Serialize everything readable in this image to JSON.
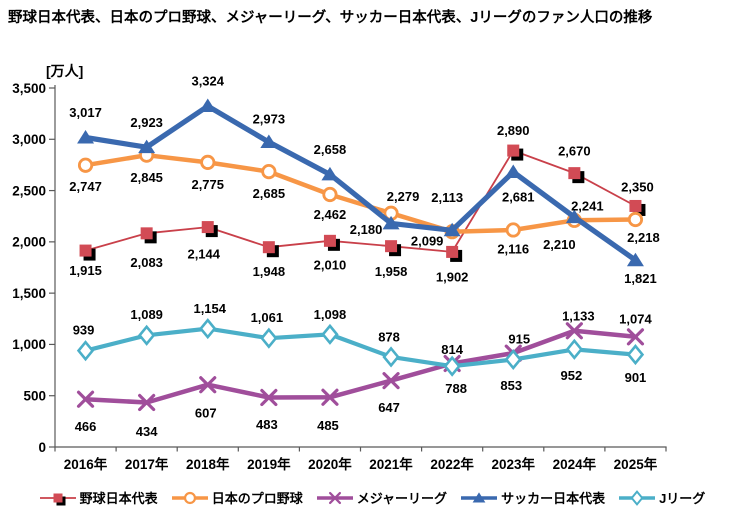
{
  "title": "野球日本代表、日本のプロ野球、メジャーリーグ、サッカー日本代表、Jリーグのファン人口の推移",
  "chart_data": {
    "type": "line",
    "unit_label": "[万人]",
    "categories": [
      "2016年",
      "2017年",
      "2018年",
      "2019年",
      "2020年",
      "2021年",
      "2022年",
      "2023年",
      "2024年",
      "2025年"
    ],
    "series": [
      {
        "id": "baseball-japan",
        "name": "野球日本代表",
        "marker": "square",
        "line_color": "#C9404A",
        "marker_color": "#D24B55",
        "marker_shadow": "#000000",
        "line_width": 1.8,
        "values": [
          1915,
          2083,
          2144,
          1948,
          2010,
          1958,
          1902,
          2890,
          2670,
          2350
        ],
        "labels": [
          "1,915",
          "2,083",
          "2,144",
          "1,948",
          "2,010",
          "1,958",
          "1,902",
          "2,890",
          "2,670",
          "2,350"
        ]
      },
      {
        "id": "npb",
        "name": "日本のプロ野球",
        "marker": "circle-open",
        "line_color": "#F79646",
        "marker_color": "#F79646",
        "line_width": 4.5,
        "values": [
          2747,
          2845,
          2775,
          2685,
          2462,
          2279,
          2099,
          2116,
          2210,
          2218
        ],
        "labels": [
          "2,747",
          "2,845",
          "2,775",
          "2,685",
          "2,462",
          "2,279",
          "2,099",
          "2,116",
          "2,210",
          "2,218"
        ]
      },
      {
        "id": "mlb",
        "name": "メジャーリーグ",
        "marker": "x",
        "line_color": "#A04E9B",
        "marker_color": "#A04E9B",
        "line_width": 4.5,
        "values": [
          466,
          434,
          607,
          483,
          485,
          647,
          814,
          915,
          1133,
          1074
        ],
        "labels": [
          "466",
          "434",
          "607",
          "483",
          "485",
          "647",
          "814",
          "915",
          "1,133",
          "1,074"
        ]
      },
      {
        "id": "soccer-japan",
        "name": "サッカー日本代表",
        "marker": "triangle",
        "line_color": "#3A69AF",
        "marker_color": "#3A69AF",
        "line_width": 5.2,
        "values": [
          3017,
          2923,
          3324,
          2973,
          2658,
          2180,
          2113,
          2681,
          2241,
          1821
        ],
        "labels": [
          "3,017",
          "2,923",
          "3,324",
          "2,973",
          "2,658",
          "2,180",
          "2,113",
          "2,681",
          "2,241",
          "1,821"
        ]
      },
      {
        "id": "jleague",
        "name": "Jリーグ",
        "marker": "diamond-open",
        "line_color": "#4BAFC8",
        "marker_color": "#4BAFC8",
        "line_width": 4.2,
        "values": [
          939,
          1089,
          1154,
          1061,
          1098,
          878,
          788,
          853,
          952,
          901
        ],
        "labels": [
          "939",
          "1,089",
          "1,154",
          "1,061",
          "1,098",
          "878",
          "788",
          "853",
          "952",
          "901"
        ]
      }
    ],
    "ylim": [
      0,
      3500
    ],
    "yticks": [
      0,
      500,
      1000,
      1500,
      2000,
      2500,
      3000,
      3500
    ],
    "ytick_labels": [
      "0",
      "500",
      "1,000",
      "1,500",
      "2,000",
      "2,500",
      "3,000",
      "3,500"
    ],
    "grid": false,
    "legend_position": "bottom",
    "label_offsets": [
      [
        [
          0,
          20
        ],
        [
          0,
          29
        ],
        [
          -4,
          27
        ],
        [
          0,
          24
        ],
        [
          0,
          24
        ],
        [
          0,
          25
        ],
        [
          0,
          25
        ],
        [
          0,
          -20
        ],
        [
          0,
          -22
        ],
        [
          2,
          -19
        ]
      ],
      [
        [
          0,
          21
        ],
        [
          0,
          22
        ],
        [
          0,
          22
        ],
        [
          0,
          22
        ],
        [
          0,
          20
        ],
        [
          12,
          -17
        ],
        [
          -25,
          9
        ],
        [
          0,
          19
        ],
        [
          -15,
          24
        ],
        [
          8,
          18
        ]
      ],
      [
        [
          0,
          27
        ],
        [
          0,
          29
        ],
        [
          -2,
          28
        ],
        [
          -2,
          27
        ],
        [
          -2,
          28
        ],
        [
          -2,
          27
        ],
        [
          0,
          -14
        ],
        [
          6,
          -14
        ],
        [
          4,
          -15
        ],
        [
          0,
          -18
        ]
      ],
      [
        [
          0,
          -25
        ],
        [
          0,
          -25
        ],
        [
          0,
          -25
        ],
        [
          0,
          -23
        ],
        [
          0,
          -25
        ],
        [
          -25,
          6
        ],
        [
          -5,
          -33
        ],
        [
          5,
          25
        ],
        [
          13,
          -11
        ],
        [
          5,
          18
        ]
      ],
      [
        [
          -2,
          -21
        ],
        [
          0,
          -21
        ],
        [
          2,
          -20
        ],
        [
          -2,
          -21
        ],
        [
          0,
          -20
        ],
        [
          -2,
          -20
        ],
        [
          4,
          22
        ],
        [
          -2,
          26
        ],
        [
          -3,
          26
        ],
        [
          0,
          23
        ]
      ]
    ]
  }
}
